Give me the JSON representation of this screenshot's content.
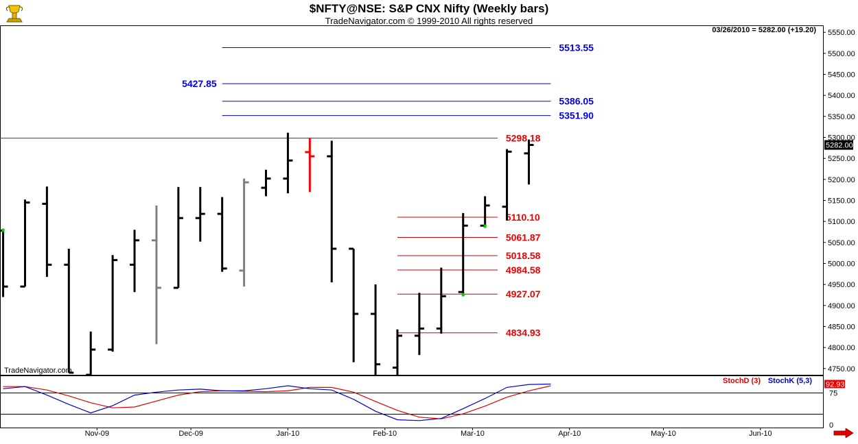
{
  "header": {
    "title": "$NFTY@NSE:  S&P CNX Nifty  (Weekly bars)",
    "subtitle": "TradeNavigator.com © 1999-2010 All rights reserved",
    "readout": "03/26/2010 = 5282.00 (+19.20)"
  },
  "watermark": "TradeNavigator.com",
  "colors": {
    "up": "#000000",
    "gray": "#808080",
    "red": "#ff0000",
    "blue_level": "#0000cc",
    "red_level": "#cc0000",
    "green_dot": "#00cc00",
    "stochD": "#dd0000",
    "stochK": "#0000cc"
  },
  "icons": {
    "logo": "trophy-icon",
    "next": "red-arrow-right-icon"
  },
  "chart_data": [
    {
      "type": "bar",
      "subtype": "ohlc",
      "title": "$NFTY@NSE:  S&P CNX Nifty  (Weekly bars)",
      "ylim": [
        4735,
        5565
      ],
      "yticks": [
        4750,
        4800,
        4850,
        4900,
        4950,
        5000,
        5050,
        5100,
        5150,
        5200,
        5250,
        5300,
        5350,
        5400,
        5450,
        5500,
        5550
      ],
      "ytick_labels": [
        "4750.00",
        "4800.00",
        "4850.00",
        "4900.00",
        "4950.00",
        "5000.00",
        "5050.00",
        "5100.00",
        "5150.00",
        "5200.00",
        "5250.00",
        "5300.00",
        "5350.00",
        "5400.00",
        "5450.00",
        "5500.00",
        "5550.00"
      ],
      "x_axis": {
        "type": "date",
        "range": [
          "2009-10-01",
          "2010-06-21"
        ],
        "labels": [
          {
            "date": "2009-11-01",
            "text": "Nov-09"
          },
          {
            "date": "2009-12-01",
            "text": "Dec-09"
          },
          {
            "date": "2010-01-01",
            "text": "Jan-10"
          },
          {
            "date": "2010-02-01",
            "text": "Feb-10"
          },
          {
            "date": "2010-03-01",
            "text": "Mar-10"
          },
          {
            "date": "2010-04-01",
            "text": "Apr-10"
          },
          {
            "date": "2010-05-01",
            "text": "May-10"
          },
          {
            "date": "2010-06-01",
            "text": "Jun-10"
          }
        ]
      },
      "last_price_label": "5282.00",
      "bars": [
        {
          "date": "2009-10-02",
          "open": 5078,
          "high": 5080,
          "low": 4920,
          "close": 4945,
          "color": "up",
          "mark": "green"
        },
        {
          "date": "2009-10-09",
          "open": 4945,
          "high": 5152,
          "low": 4945,
          "close": 5145,
          "color": "up"
        },
        {
          "date": "2009-10-16",
          "open": 5142,
          "high": 5183,
          "low": 4968,
          "close": 4997,
          "color": "up"
        },
        {
          "date": "2009-10-23",
          "open": 4997,
          "high": 5035,
          "low": 4740,
          "close": 4740,
          "color": "up"
        },
        {
          "date": "2009-10-30",
          "open": 4735,
          "high": 4838,
          "low": 4735,
          "close": 4795,
          "color": "up"
        },
        {
          "date": "2009-11-06",
          "open": 4795,
          "high": 5020,
          "low": 4790,
          "close": 5008,
          "color": "up"
        },
        {
          "date": "2009-11-13",
          "open": 4997,
          "high": 5080,
          "low": 4932,
          "close": 5055,
          "color": "up"
        },
        {
          "date": "2009-11-20",
          "open": 5055,
          "high": 5138,
          "low": 4808,
          "close": 4942,
          "color": "gray"
        },
        {
          "date": "2009-11-27",
          "open": 4942,
          "high": 5182,
          "low": 4942,
          "close": 5108,
          "color": "up"
        },
        {
          "date": "2009-12-04",
          "open": 5108,
          "high": 5182,
          "low": 5052,
          "close": 5118,
          "color": "up"
        },
        {
          "date": "2009-12-11",
          "open": 5118,
          "high": 5158,
          "low": 4980,
          "close": 4988,
          "color": "up"
        },
        {
          "date": "2009-12-18",
          "open": 4983,
          "high": 5202,
          "low": 4945,
          "close": 5193,
          "color": "gray"
        },
        {
          "date": "2009-12-25",
          "open": 5180,
          "high": 5223,
          "low": 5160,
          "close": 5202,
          "color": "up"
        },
        {
          "date": "2010-01-01",
          "open": 5202,
          "high": 5311,
          "low": 5167,
          "close": 5245,
          "color": "up"
        },
        {
          "date": "2010-01-08",
          "open": 5265,
          "high": 5298,
          "low": 5170,
          "close": 5255,
          "color": "red"
        },
        {
          "date": "2010-01-15",
          "open": 5255,
          "high": 5292,
          "low": 4955,
          "close": 5035,
          "color": "up"
        },
        {
          "date": "2010-01-22",
          "open": 5035,
          "high": 5035,
          "low": 4765,
          "close": 4880,
          "color": "up"
        },
        {
          "date": "2010-01-29",
          "open": 4880,
          "high": 4950,
          "low": 4735,
          "close": 4760,
          "color": "up"
        },
        {
          "date": "2010-02-05",
          "open": 4752,
          "high": 4843,
          "low": 4735,
          "close": 4828,
          "color": "up"
        },
        {
          "date": "2010-02-12",
          "open": 4828,
          "high": 4930,
          "low": 4782,
          "close": 4845,
          "color": "up"
        },
        {
          "date": "2010-02-19",
          "open": 4845,
          "high": 4990,
          "low": 4833,
          "close": 4922,
          "color": "up"
        },
        {
          "date": "2010-02-26",
          "open": 4932,
          "high": 5120,
          "low": 4925,
          "close": 5090,
          "color": "up",
          "mark": "green"
        },
        {
          "date": "2010-03-05",
          "open": 5090,
          "high": 5160,
          "low": 5088,
          "close": 5138,
          "color": "up",
          "mark": "green"
        },
        {
          "date": "2010-03-12",
          "open": 5135,
          "high": 5272,
          "low": 5102,
          "close": 5266,
          "color": "up"
        },
        {
          "date": "2010-03-19",
          "open": 5262,
          "high": 5295,
          "low": 5188,
          "close": 5282,
          "color": "up"
        }
      ],
      "levels": [
        {
          "value": 5513.55,
          "label": "5513.55",
          "color": "blue",
          "from": "2009-12-11",
          "to": "2010-03-26",
          "label_side": "right"
        },
        {
          "value": 5427.85,
          "label": "5427.85",
          "color": "blue",
          "from": "2009-12-11",
          "to": "2010-03-26",
          "label_side": "left"
        },
        {
          "value": 5386.05,
          "label": "5386.05",
          "color": "blue",
          "from": "2009-12-11",
          "to": "2010-03-26",
          "label_side": "right"
        },
        {
          "value": 5351.9,
          "label": "5351.90",
          "color": "blue",
          "from": "2009-12-11",
          "to": "2010-03-26",
          "label_side": "right"
        },
        {
          "value": 5298.18,
          "label": "5298.18",
          "color": "red",
          "from": "2009-10-01",
          "to": "2010-03-09",
          "label_side": "right"
        },
        {
          "value": 5110.1,
          "label": "5110.10",
          "color": "red",
          "from": "2010-02-05",
          "to": "2010-03-09",
          "label_side": "right"
        },
        {
          "value": 5061.87,
          "label": "5061.87",
          "color": "red",
          "from": "2010-02-05",
          "to": "2010-03-09",
          "label_side": "right"
        },
        {
          "value": 5018.58,
          "label": "5018.58",
          "color": "red",
          "from": "2010-02-05",
          "to": "2010-03-09",
          "label_side": "right"
        },
        {
          "value": 4984.58,
          "label": "4984.58",
          "color": "red",
          "from": "2010-02-05",
          "to": "2010-03-09",
          "label_side": "right"
        },
        {
          "value": 4927.07,
          "label": "4927.07",
          "color": "red",
          "from": "2010-02-05",
          "to": "2010-03-09",
          "label_side": "right"
        },
        {
          "value": 4834.93,
          "label": "4834.93",
          "color": "red",
          "from": "2010-02-05",
          "to": "2010-03-09",
          "label_side": "right"
        }
      ]
    },
    {
      "type": "line",
      "title": "",
      "ylim": [
        0,
        100
      ],
      "yticks": [
        0,
        75
      ],
      "ytick_labels": [
        "0",
        "75"
      ],
      "reference_lines": [
        75,
        25
      ],
      "last_value_label": "92.93",
      "legend": [
        "StochD (3)",
        "StochK (5,3)"
      ],
      "legend_placement": "top-right",
      "series": [
        {
          "name": "StochD (3)",
          "color": "stochD",
          "values": [
            90,
            90,
            82,
            68,
            52,
            40,
            42,
            56,
            70,
            78,
            80,
            79,
            78,
            80,
            88,
            88,
            77,
            55,
            34,
            18,
            14,
            26,
            44,
            65,
            80,
            92
          ]
        },
        {
          "name": "StochK (5,3)",
          "color": "stochK",
          "values": [
            85,
            90,
            70,
            48,
            28,
            45,
            70,
            77,
            82,
            84,
            80,
            80,
            85,
            92,
            85,
            82,
            60,
            32,
            12,
            10,
            15,
            38,
            62,
            88,
            95,
            96
          ]
        }
      ],
      "x_dates": [
        "2009-10-02",
        "2009-10-09",
        "2009-10-16",
        "2009-10-23",
        "2009-10-30",
        "2009-11-06",
        "2009-11-13",
        "2009-11-20",
        "2009-11-27",
        "2009-12-04",
        "2009-12-11",
        "2009-12-18",
        "2009-12-25",
        "2010-01-01",
        "2010-01-08",
        "2010-01-15",
        "2010-01-22",
        "2010-01-29",
        "2010-02-05",
        "2010-02-12",
        "2010-02-19",
        "2010-02-26",
        "2010-03-05",
        "2010-03-12",
        "2010-03-19",
        "2010-03-26"
      ]
    }
  ]
}
